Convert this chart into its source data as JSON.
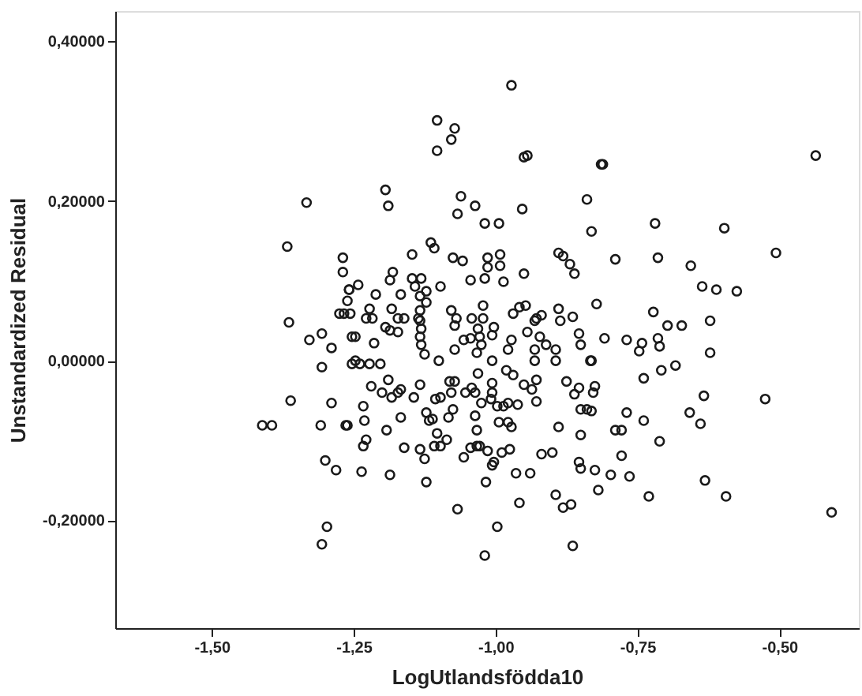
{
  "chart_data": {
    "type": "scatter",
    "xlabel": "LogUtlandsfödda10",
    "ylabel": "Unstandardized Residual",
    "xlim": [
      -1.67,
      -0.36
    ],
    "ylim": [
      -0.335,
      0.438
    ],
    "xticks": [
      {
        "value": -1.5,
        "label": "-1,50"
      },
      {
        "value": -1.25,
        "label": "-1,25"
      },
      {
        "value": -1.0,
        "label": "-1,00"
      },
      {
        "value": -0.75,
        "label": "-0,75"
      },
      {
        "value": -0.5,
        "label": "-0,50"
      }
    ],
    "yticks": [
      {
        "value": -0.2,
        "label": "-0,20000"
      },
      {
        "value": 0.0,
        "label": "0,00000"
      },
      {
        "value": 0.2,
        "label": "0,20000"
      },
      {
        "value": 0.4,
        "label": "0,40000"
      }
    ],
    "grid": false,
    "marker": "circle",
    "series": [
      {
        "color": "#1a1a1a",
        "x": [
          -0.972,
          -1.103,
          -1.072,
          -1.078,
          -1.103,
          -0.95,
          -0.944,
          -0.814,
          -1.194,
          -1.189,
          -1.061,
          -1.067,
          -1.036,
          -0.953,
          -0.839,
          -0.831,
          -1.019,
          -0.994,
          -1.114,
          -1.108,
          -1.147,
          -1.075,
          -1.058,
          -1.014,
          -0.992,
          -0.889,
          -0.881,
          -0.869,
          -0.861,
          -1.014,
          -0.992,
          -0.986,
          -1.044,
          -1.019,
          -0.95,
          -1.181,
          -1.186,
          -1.242,
          -1.258,
          -1.097,
          -1.147,
          -1.131,
          -1.142,
          -1.122,
          -1.211,
          -1.167,
          -1.133,
          -1.122,
          -0.822,
          -1.022,
          -1.222,
          -1.183,
          -1.133,
          -1.078,
          -0.969,
          -0.958,
          -0.947,
          -0.889,
          -0.864,
          -1.228,
          -1.217,
          -1.172,
          -1.161,
          -1.136,
          -1.069,
          -1.042,
          -1.022,
          -0.928,
          -0.919,
          -0.886,
          -1.269,
          -1.269,
          -1.258,
          -1.261,
          -1.275,
          -1.267,
          -1.256,
          -1.333,
          -1.367,
          -1.364,
          -1.306,
          -0.436,
          -0.811,
          -0.719,
          -0.597,
          -0.789,
          -0.714,
          -0.656,
          -0.506,
          -0.636,
          -0.611,
          -0.575,
          -0.722,
          -0.697,
          -0.672,
          -0.622,
          -0.808,
          -0.769,
          -0.742,
          -0.747,
          -0.714,
          -0.711,
          -0.622,
          -0.831,
          -0.683,
          -0.708,
          -0.739,
          -0.825,
          -0.828,
          -0.633,
          -0.525,
          -0.831,
          -0.769,
          -0.658,
          -0.739,
          -0.639,
          -0.789,
          -0.778,
          -0.711,
          -0.778,
          -0.825,
          -0.797,
          -0.764,
          -0.819,
          -0.73,
          -0.631,
          -0.594,
          -0.408,
          -1.247,
          -1.214,
          -1.194,
          -1.186,
          -1.172,
          -1.133,
          -1.131,
          -1.133,
          -1.131,
          -1.125,
          -1.072,
          -1.072,
          -1.056,
          -1.044,
          -1.031,
          -1.028,
          -1.025,
          -1.033,
          -1.003,
          -1.006,
          -0.978,
          -0.972,
          -0.944,
          -0.931,
          -0.922,
          -0.931,
          -0.931,
          -0.911,
          -0.894,
          -0.894,
          -0.853,
          -0.85,
          -0.833,
          -1.247,
          -1.239,
          -1.222,
          -1.203,
          -1.1,
          -1.006,
          -1.031,
          -0.981,
          -0.969,
          -1.219,
          -1.2,
          -1.189,
          -1.183,
          -1.167,
          -1.172,
          -1.133,
          -1.144,
          -1.106,
          -1.097,
          -1.081,
          -1.072,
          -1.078,
          -1.053,
          -1.042,
          -1.036,
          -1.006,
          -1.006,
          -1.025,
          -1.008,
          -0.997,
          -0.986,
          -0.978,
          -0.961,
          -0.95,
          -0.936,
          -0.928,
          -0.928,
          -0.875,
          -0.861,
          -0.853,
          -0.85,
          -0.839,
          -1.233,
          -1.231,
          -1.261,
          -1.167,
          -1.192,
          -1.228,
          -1.233,
          -1.161,
          -1.122,
          -1.117,
          -1.111,
          -1.103,
          -1.086,
          -1.133,
          -1.125,
          -1.108,
          -1.097,
          -1.083,
          -1.075,
          -1.036,
          -1.033,
          -0.994,
          -0.978,
          -0.972,
          -1.056,
          -1.044,
          -1.033,
          -1.028,
          -1.014,
          -1.006,
          -1.003,
          -0.989,
          -0.975,
          -0.919,
          -0.9,
          -0.889,
          -0.85,
          -0.853,
          -0.85,
          -1.236,
          -1.186,
          -1.122,
          -1.017,
          -0.964,
          -0.939,
          -0.894,
          -0.881,
          -0.867,
          -0.958,
          -1.067,
          -0.997,
          -0.864,
          -1.019,
          -1.328,
          -1.289,
          -1.306,
          -1.253,
          -1.361,
          -1.289,
          -1.411,
          -1.394,
          -1.308,
          -1.264,
          -1.3,
          -1.281,
          -1.297,
          -1.306,
          -1.253
        ],
        "values": [
          0.345,
          0.301,
          0.291,
          0.277,
          0.263,
          0.255,
          0.257,
          0.246,
          0.214,
          0.194,
          0.206,
          0.184,
          0.194,
          0.19,
          0.202,
          0.162,
          0.172,
          0.172,
          0.148,
          0.141,
          0.133,
          0.129,
          0.125,
          0.129,
          0.133,
          0.135,
          0.131,
          0.121,
          0.109,
          0.117,
          0.119,
          0.099,
          0.101,
          0.103,
          0.109,
          0.111,
          0.101,
          0.095,
          0.089,
          0.093,
          0.103,
          0.103,
          0.093,
          0.087,
          0.083,
          0.083,
          0.081,
          0.073,
          0.071,
          0.069,
          0.065,
          0.065,
          0.063,
          0.063,
          0.059,
          0.067,
          0.069,
          0.065,
          0.055,
          0.053,
          0.053,
          0.053,
          0.053,
          0.053,
          0.053,
          0.053,
          0.053,
          0.053,
          0.057,
          0.05,
          0.129,
          0.111,
          0.089,
          0.075,
          0.059,
          0.059,
          0.059,
          0.198,
          0.143,
          0.048,
          0.034,
          0.257,
          0.246,
          0.172,
          0.166,
          0.127,
          0.129,
          0.119,
          0.135,
          0.093,
          0.089,
          0.087,
          0.061,
          0.044,
          0.044,
          0.05,
          0.028,
          0.026,
          0.022,
          0.012,
          0.028,
          0.018,
          0.01,
          0.0,
          -0.006,
          -0.012,
          -0.022,
          -0.032,
          -0.04,
          -0.044,
          -0.048,
          -0.063,
          -0.065,
          -0.065,
          -0.075,
          -0.079,
          -0.087,
          -0.087,
          -0.101,
          -0.119,
          -0.137,
          -0.143,
          -0.145,
          -0.162,
          -0.17,
          -0.15,
          -0.17,
          -0.19,
          0.03,
          0.022,
          0.042,
          0.038,
          0.036,
          0.05,
          0.04,
          0.03,
          0.02,
          0.008,
          0.044,
          0.014,
          0.026,
          0.028,
          0.04,
          0.03,
          0.02,
          0.01,
          0.042,
          0.032,
          0.014,
          0.026,
          0.036,
          0.05,
          0.03,
          0.014,
          0.0,
          0.02,
          0.014,
          0.0,
          0.034,
          0.02,
          0.0,
          0.0,
          -0.004,
          -0.004,
          -0.004,
          0.0,
          0.0,
          -0.016,
          -0.012,
          -0.018,
          -0.032,
          -0.04,
          -0.024,
          -0.046,
          -0.036,
          -0.04,
          -0.03,
          -0.046,
          -0.048,
          -0.046,
          -0.026,
          -0.026,
          -0.04,
          -0.04,
          -0.034,
          -0.04,
          -0.028,
          -0.04,
          -0.053,
          -0.048,
          -0.057,
          -0.057,
          -0.053,
          -0.055,
          -0.03,
          -0.036,
          -0.024,
          -0.051,
          -0.026,
          -0.042,
          -0.034,
          -0.061,
          -0.061,
          -0.057,
          -0.075,
          -0.081,
          -0.071,
          -0.087,
          -0.099,
          -0.107,
          -0.109,
          -0.065,
          -0.075,
          -0.073,
          -0.091,
          -0.099,
          -0.111,
          -0.123,
          -0.107,
          -0.107,
          -0.071,
          -0.061,
          -0.069,
          -0.087,
          -0.077,
          -0.077,
          -0.083,
          -0.121,
          -0.109,
          -0.107,
          -0.107,
          -0.113,
          -0.131,
          -0.127,
          -0.115,
          -0.111,
          -0.117,
          -0.115,
          -0.083,
          -0.093,
          -0.127,
          -0.135,
          -0.139,
          -0.143,
          -0.152,
          -0.152,
          -0.141,
          -0.141,
          -0.168,
          -0.184,
          -0.18,
          -0.178,
          -0.186,
          -0.208,
          -0.232,
          -0.244,
          0.026,
          0.016,
          -0.008,
          0.03,
          -0.05,
          -0.053,
          -0.081,
          -0.081,
          -0.081,
          -0.081,
          -0.125,
          -0.137,
          -0.208,
          -0.23,
          -0.004
        ]
      }
    ]
  }
}
